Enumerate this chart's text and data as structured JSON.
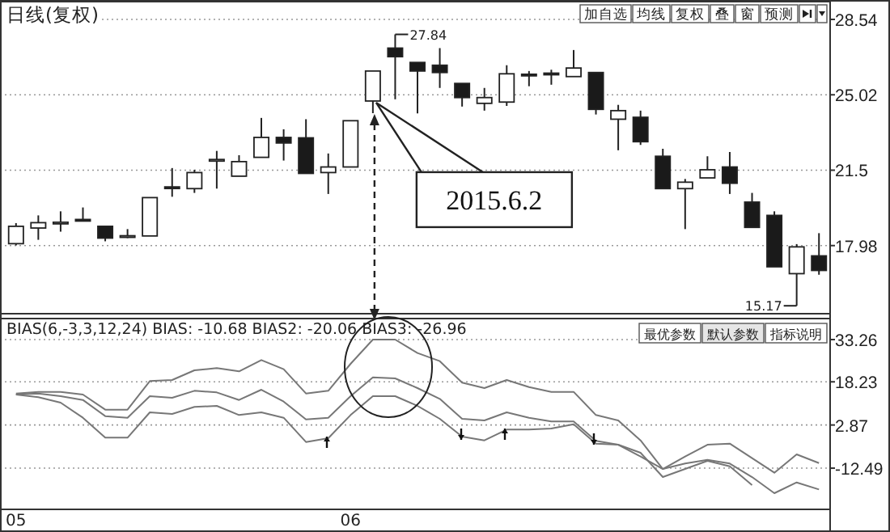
{
  "chart_data": [
    {
      "type": "candlestick",
      "title": "日线(复权)",
      "categories": [
        null,
        null,
        null,
        null,
        null,
        null,
        null,
        null,
        null,
        null,
        null,
        null,
        null,
        null,
        null,
        null,
        null,
        null,
        null,
        null,
        null,
        null,
        null,
        null,
        null,
        null,
        null,
        null,
        null,
        null,
        null,
        null,
        null,
        null,
        null,
        null,
        null
      ],
      "ohlc": [
        [
          18.07,
          19.03,
          17.99,
          18.88
        ],
        [
          18.8,
          19.39,
          18.25,
          19.05
        ],
        [
          19.03,
          19.58,
          18.63,
          19.07
        ],
        [
          19.2,
          19.76,
          19.13,
          19.15
        ],
        [
          18.88,
          18.88,
          18.18,
          18.33
        ],
        [
          18.42,
          18.75,
          18.33,
          18.44
        ],
        [
          18.43,
          20.22,
          18.43,
          20.22
        ],
        [
          20.72,
          21.6,
          20.26,
          20.66
        ],
        [
          20.64,
          21.52,
          20.44,
          21.39
        ],
        [
          21.95,
          22.4,
          20.64,
          22.0
        ],
        [
          21.22,
          22.2,
          21.22,
          21.9
        ],
        [
          22.1,
          23.94,
          22.1,
          23.03
        ],
        [
          23.03,
          23.41,
          21.95,
          22.77
        ],
        [
          23.01,
          23.88,
          21.35,
          21.35
        ],
        [
          21.39,
          22.28,
          20.39,
          21.65
        ],
        [
          21.65,
          23.81,
          21.65,
          23.81
        ],
        [
          24.73,
          26.13,
          24.16,
          26.13
        ],
        [
          27.2,
          27.84,
          24.81,
          26.8
        ],
        [
          26.53,
          26.53,
          24.15,
          26.13
        ],
        [
          26.4,
          27.2,
          25.34,
          26.06
        ],
        [
          25.55,
          25.55,
          24.47,
          24.89
        ],
        [
          24.62,
          25.34,
          24.28,
          24.89
        ],
        [
          24.68,
          26.4,
          24.5,
          26.0
        ],
        [
          25.98,
          26.13,
          25.42,
          25.92
        ],
        [
          26.03,
          26.19,
          25.49,
          25.96
        ],
        [
          25.87,
          27.11,
          25.87,
          26.27
        ],
        [
          26.06,
          26.06,
          24.1,
          24.34
        ],
        [
          23.88,
          24.55,
          22.43,
          24.28
        ],
        [
          23.97,
          24.28,
          22.68,
          22.83
        ],
        [
          22.15,
          22.5,
          20.64,
          20.64
        ],
        [
          20.64,
          21.09,
          18.75,
          20.94
        ],
        [
          21.14,
          22.15,
          21.14,
          21.52
        ],
        [
          21.65,
          22.35,
          20.39,
          20.89
        ],
        [
          20.01,
          20.44,
          18.83,
          18.83
        ],
        [
          19.39,
          19.58,
          16.99,
          16.99
        ],
        [
          16.67,
          18.05,
          15.17,
          17.92
        ],
        [
          17.5,
          18.56,
          16.62,
          16.82
        ]
      ],
      "ylim": [
        14.8,
        29.37
      ],
      "yticks": [
        28.54,
        25.02,
        21.5,
        17.98
      ],
      "grid": "y",
      "tick_labels": "y",
      "annotations": [
        "加自选",
        "均线",
        "复权",
        "叠",
        "窗",
        "预测",
        "27.84",
        "15.17",
        "2015.6.2"
      ]
    },
    {
      "type": "line",
      "title": "BIAS(6,-3,3,12,24) BIAS: -10.68 BIAS2: -20.06 BIAS3: -26.96",
      "categories": [
        "05",
        null,
        null,
        null,
        null,
        null,
        null,
        null,
        null,
        null,
        null,
        null,
        null,
        null,
        null,
        "06",
        null,
        null,
        null,
        null,
        null,
        null,
        null,
        null,
        null,
        null,
        null,
        null,
        null,
        null,
        null,
        null,
        null,
        null,
        null,
        null,
        null
      ],
      "series": [
        {
          "color": "#777777",
          "values": [
            14.08,
            14.66,
            14.66,
            13.7,
            8.33,
            8.33,
            18.49,
            18.88,
            22.33,
            23.09,
            21.94,
            25.97,
            22.71,
            14.08,
            15.04,
            24.63,
            33.26,
            33.26,
            28.47,
            25.59,
            17.92,
            16.0,
            18.88,
            16.38,
            14.66,
            14.66,
            6.41,
            4.49,
            -2.61,
            -12.77,
            -8.36,
            -4.14,
            -3.76,
            -8.94,
            -14.11,
            -7.59,
            -10.68
          ]
        },
        {
          "color": "#777777",
          "values": [
            13.7,
            14.08,
            13.12,
            11.78,
            6.03,
            5.45,
            13.12,
            12.55,
            15.04,
            14.46,
            11.78,
            15.42,
            11.2,
            4.87,
            5.45,
            13.12,
            19.83,
            19.45,
            16.0,
            12.16,
            5.07,
            4.49,
            7.37,
            5.45,
            4.11,
            4.11,
            -2.8,
            -4.14,
            -8.36,
            -12.77,
            -10.85,
            -9.51,
            -10.85,
            -15.65,
            -21.4,
            -17.57,
            -20.06
          ]
        },
        {
          "color": "#777777",
          "values": [
            13.7,
            12.74,
            10.82,
            5.45,
            -1.65,
            -1.65,
            7.37,
            6.79,
            9.29,
            9.67,
            6.41,
            7.37,
            5.45,
            -3.18,
            -1.84,
            6.41,
            13.12,
            13.12,
            9.67,
            5.07,
            -1.26,
            -2.61,
            1.23,
            1.23,
            1.61,
            3.15,
            -3.76,
            -4.14,
            -7.02,
            -15.65,
            -12.77,
            -9.89,
            -11.81,
            -18.53,
            null,
            null,
            null
          ]
        }
      ],
      "ylim": [
        -27.15,
        40.74
      ],
      "yticks": [
        33.26,
        18.23,
        2.87,
        -12.49
      ],
      "grid": "y",
      "marker": "none",
      "line_style": "solid",
      "annotations": [
        "最优参数",
        "默认参数",
        "指标说明"
      ]
    }
  ]
}
